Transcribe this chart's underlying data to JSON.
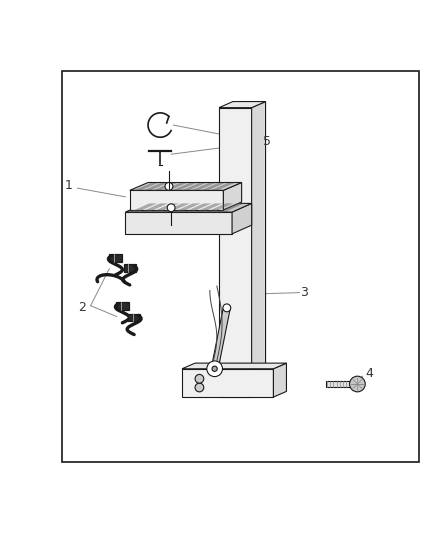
{
  "bg": "#ffffff",
  "lc": "#1a1a1a",
  "lc_light": "#888888",
  "lw": 0.8,
  "fig_w": 4.38,
  "fig_h": 5.33,
  "dpi": 100,
  "border": [
    0.14,
    0.05,
    0.82,
    0.9
  ],
  "label_fs": 9,
  "label_color": "#555555"
}
